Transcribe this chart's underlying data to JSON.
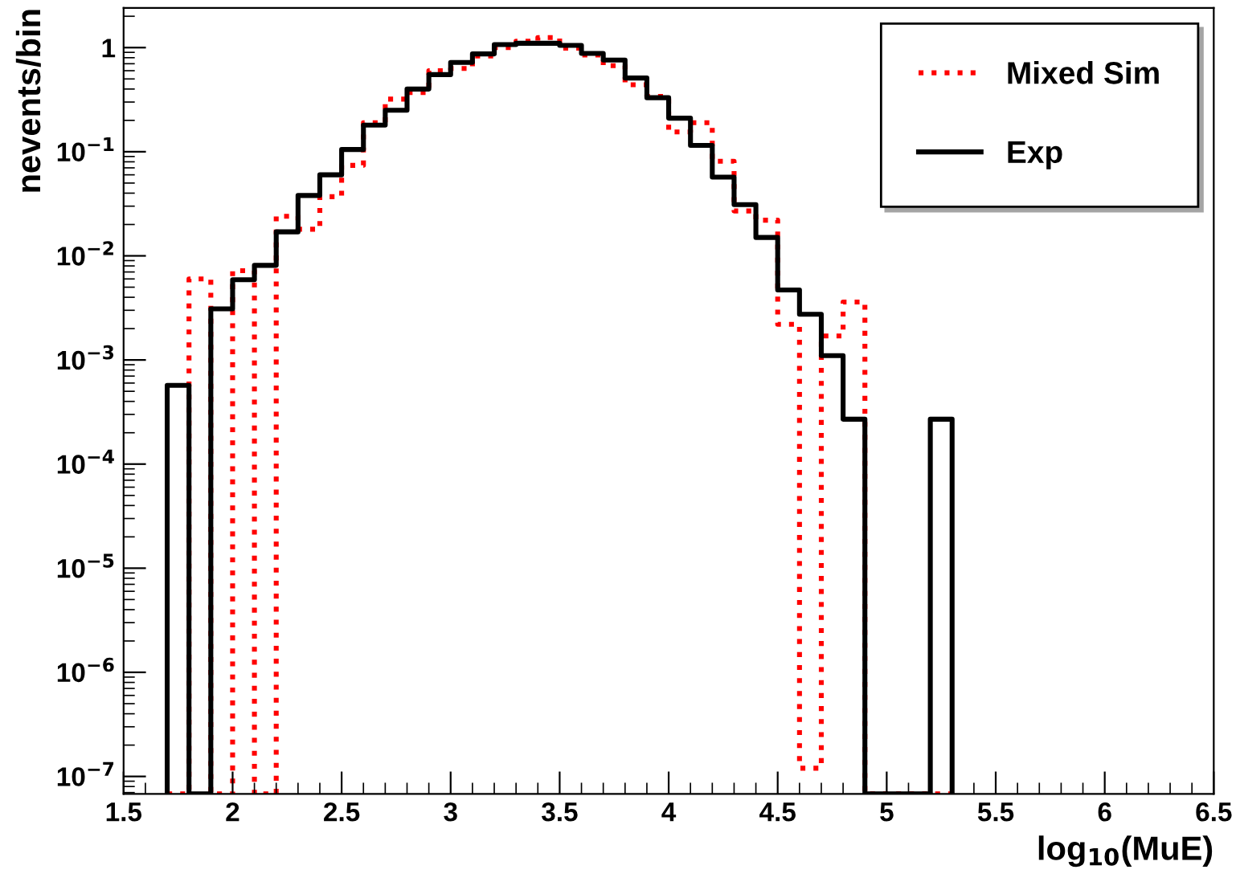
{
  "chart_data": {
    "type": "histogram",
    "xlabel": "log$_{10}$(MuE)",
    "ylabel": "nevents/bin",
    "bins": [
      1.7,
      1.8,
      1.9,
      2.0,
      2.1,
      2.2,
      2.3,
      2.4,
      2.5,
      2.6,
      2.7,
      2.8,
      2.9,
      3.0,
      3.1,
      3.2,
      3.3,
      3.4,
      3.5,
      3.6,
      3.7,
      3.8,
      3.9,
      4.0,
      4.1,
      4.2,
      4.3,
      4.4,
      4.5,
      4.6,
      4.7,
      4.8,
      4.9,
      5.0,
      5.1,
      5.2,
      5.3
    ],
    "series": [
      {
        "name": "Mixed Sim",
        "color": "#ff0000",
        "line_style": "dotted",
        "values": [
          null,
          0.006,
          null,
          0.0072,
          null,
          0.024,
          0.018,
          0.037,
          0.074,
          0.19,
          0.32,
          0.37,
          0.6,
          0.63,
          0.83,
          1.0,
          1.15,
          1.25,
          0.99,
          0.85,
          0.67,
          0.44,
          0.34,
          0.155,
          0.19,
          0.081,
          0.027,
          0.022,
          0.0022,
          1.2e-07,
          0.0017,
          0.0036,
          null,
          null,
          null,
          null
        ]
      },
      {
        "name": "Exp",
        "color": "#000000",
        "line_style": "solid",
        "values": [
          0.00057,
          null,
          0.0031,
          0.0059,
          0.0081,
          0.017,
          0.038,
          0.06,
          0.105,
          0.18,
          0.25,
          0.4,
          0.55,
          0.72,
          0.87,
          1.07,
          1.1,
          1.1,
          1.05,
          0.88,
          0.76,
          0.51,
          0.33,
          0.21,
          0.115,
          0.057,
          0.031,
          0.015,
          0.0047,
          0.00275,
          0.0011,
          0.00027,
          null,
          null,
          null,
          0.00027
        ]
      }
    ],
    "log": "y",
    "xlim": [
      1.5,
      6.5
    ],
    "xticks": [
      1.5,
      2,
      2.5,
      3,
      3.5,
      4,
      4.5,
      5,
      5.5,
      6,
      6.5
    ],
    "ylim": [
      6.8e-08,
      2.4
    ],
    "yticks": [
      {
        "value": 1e-07,
        "label": "10$^{−7}$"
      },
      {
        "value": 1e-06,
        "label": "10$^{−6}$"
      },
      {
        "value": 1e-05,
        "label": "10$^{−5}$"
      },
      {
        "value": 0.0001,
        "label": "10$^{−4}$"
      },
      {
        "value": 0.001,
        "label": "10$^{−3}$"
      },
      {
        "value": 0.01,
        "label": "10$^{−2}$"
      },
      {
        "value": 0.1,
        "label": "10$^{−1}$"
      },
      1
    ],
    "grid": false,
    "legend": "top right"
  }
}
